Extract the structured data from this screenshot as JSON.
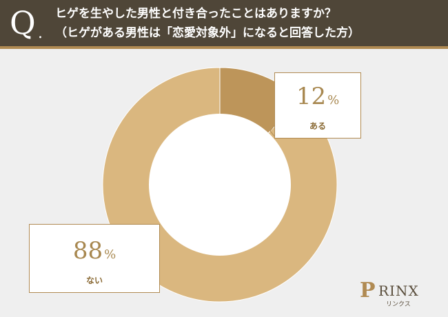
{
  "question": {
    "mark": "Q",
    "dot": ".",
    "line1": "ヒゲを生やした男性と付き合ったことはありますか？",
    "line2": "（ヒゲがある男性は「恋愛対象外」になると回答した方）"
  },
  "chart_data": {
    "type": "pie",
    "donut": true,
    "categories": [
      "ある",
      "ない"
    ],
    "values": [
      12,
      88
    ],
    "unit": "%",
    "colors": [
      "#bd955a",
      "#dab77f"
    ],
    "start_angle_deg": 0,
    "direction": "clockwise"
  },
  "labels": {
    "yes": {
      "value": "12",
      "unit": "%",
      "category": "ある"
    },
    "no": {
      "value": "88",
      "unit": "%",
      "category": "ない"
    }
  },
  "logo": {
    "word": "RINX",
    "sub": "リンクス",
    "initial": "P"
  }
}
